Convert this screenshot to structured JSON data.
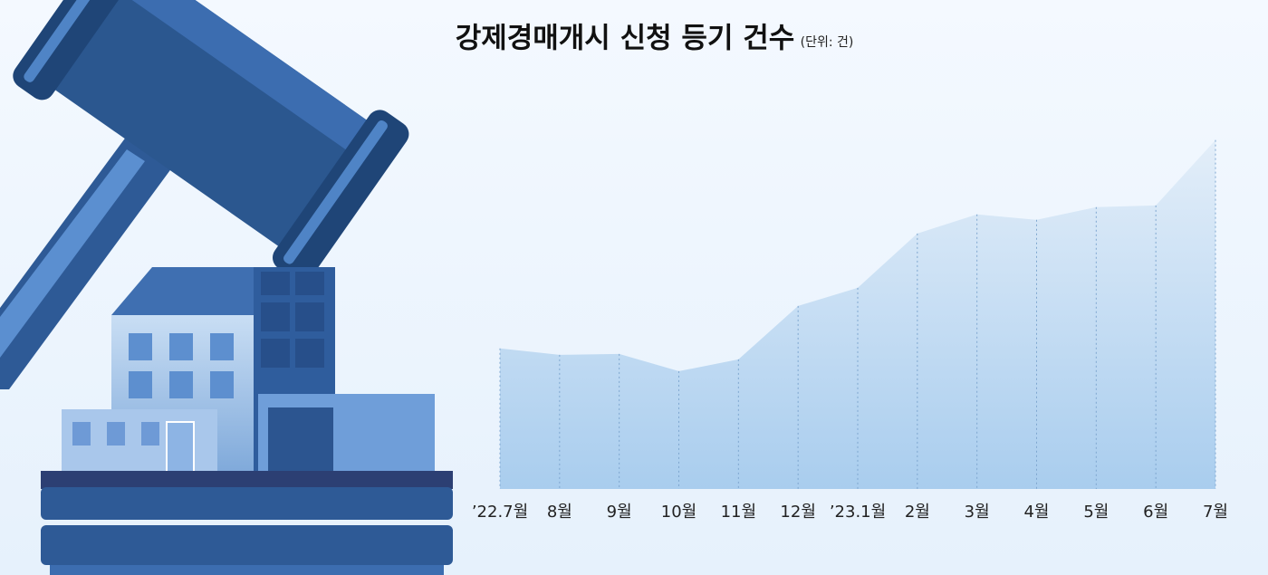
{
  "chart_data": {
    "type": "area",
    "title": "강제경매개시 신청 등기 건수",
    "subtitle": "(단위: 건)",
    "categories": [
      "’22.7월",
      "8월",
      "9월",
      "10월",
      "11월",
      "12월",
      "’23.1월",
      "2월",
      "3월",
      "4월",
      "5월",
      "6월",
      "7월"
    ],
    "values": [
      1447,
      1381,
      1390,
      1213,
      1334,
      1885,
      2071,
      2631,
      2827,
      2771,
      2902,
      2920,
      3593
    ],
    "color": "#a9cdee",
    "ylim": [
      0,
      4000
    ]
  }
}
